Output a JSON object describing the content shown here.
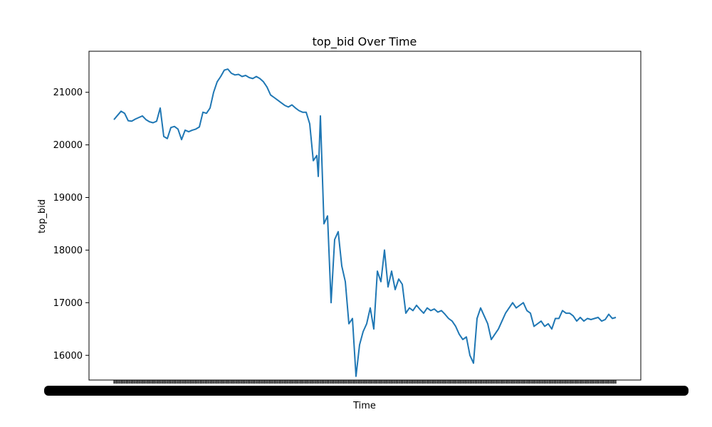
{
  "chart_data": {
    "type": "line",
    "title": "top_bid Over Time",
    "xlabel": "Time",
    "ylabel": "top_bid",
    "ylim": [
      15530,
      21780
    ],
    "yticks": [
      16000,
      17000,
      18000,
      19000,
      20000,
      21000
    ],
    "ytick_labels": [
      "16000",
      "17000",
      "18000",
      "19000",
      "20000",
      "21000"
    ],
    "x_tick_labels_note": "",
    "grid": false,
    "legend": null,
    "series": [
      {
        "color": "#1f77b4",
        "x": [
          0,
          5,
          10,
          15,
          20,
          25,
          30,
          35,
          40,
          45,
          50,
          55,
          60,
          65,
          70,
          75,
          80,
          85,
          90,
          95,
          100,
          105,
          110,
          115,
          120,
          125,
          130,
          135,
          140,
          145,
          150,
          155,
          160,
          165,
          170,
          175,
          180,
          185,
          190,
          195,
          200,
          205,
          210,
          215,
          220,
          225,
          230,
          235,
          240,
          245,
          250,
          255,
          260,
          265,
          270,
          275,
          280,
          285,
          286,
          287,
          290,
          295,
          300,
          305,
          310,
          315,
          320,
          325,
          330,
          335,
          340,
          345,
          350,
          355,
          360,
          365,
          370,
          375,
          380,
          385,
          390,
          395,
          400,
          405,
          410,
          415,
          420,
          425,
          430,
          435,
          440,
          445,
          450,
          455,
          460,
          465,
          470,
          475,
          480,
          485,
          490,
          495,
          500,
          505,
          510,
          515,
          520,
          525,
          530,
          535,
          540,
          545,
          550,
          555,
          560,
          565,
          570,
          575,
          580,
          585,
          590,
          595,
          600,
          605,
          610,
          615,
          620,
          625,
          630,
          635,
          640,
          645,
          650,
          655,
          660,
          665,
          670,
          675,
          680,
          685,
          690,
          695,
          700,
          705
        ],
        "y": [
          20480,
          20560,
          20640,
          20600,
          20460,
          20450,
          20490,
          20520,
          20550,
          20480,
          20440,
          20420,
          20450,
          20700,
          20160,
          20120,
          20330,
          20350,
          20300,
          20100,
          20280,
          20250,
          20280,
          20300,
          20340,
          20620,
          20600,
          20700,
          21000,
          21200,
          21300,
          21420,
          21440,
          21360,
          21330,
          21340,
          21300,
          21320,
          21280,
          21260,
          21300,
          21260,
          21200,
          21100,
          20950,
          20900,
          20850,
          20800,
          20750,
          20720,
          20760,
          20700,
          20650,
          20620,
          20620,
          20400,
          19700,
          19800,
          19600,
          19400,
          20550,
          18500,
          18650,
          17000,
          18200,
          18350,
          17700,
          17400,
          16600,
          16700,
          15600,
          16200,
          16450,
          16600,
          16900,
          16500,
          17600,
          17400,
          18000,
          17300,
          17600,
          17250,
          17450,
          17350,
          16800,
          16900,
          16850,
          16950,
          16870,
          16800,
          16900,
          16850,
          16880,
          16820,
          16850,
          16780,
          16700,
          16650,
          16550,
          16400,
          16300,
          16350,
          16000,
          15850,
          16700,
          16900,
          16750,
          16600,
          16300,
          16400,
          16500,
          16650,
          16800,
          16900,
          17000,
          16900,
          16950,
          17000,
          16850,
          16800,
          16550,
          16600,
          16650,
          16550,
          16600,
          16500,
          16700,
          16700,
          16850,
          16800,
          16800,
          16750,
          16650,
          16720,
          16650,
          16700,
          16680,
          16700,
          16720,
          16650,
          16680,
          16780,
          16700,
          16720
        ]
      }
    ]
  }
}
